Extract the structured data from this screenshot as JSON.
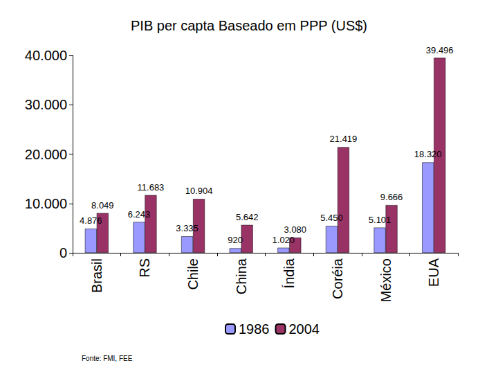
{
  "chart_data": {
    "type": "bar",
    "title": "PIB per capta Baseado em PPP (US$)",
    "annotations": [
      "Fonte: FMI, FEE"
    ],
    "categories": [
      "Brasil",
      "RS",
      "Chile",
      "China",
      "Índia",
      "Coréia",
      "México",
      "EUA"
    ],
    "series": [
      {
        "name": "1986",
        "color": "#9999ff",
        "values": [
          4876,
          6243,
          3335,
          920,
          1020,
          5450,
          5101,
          18320
        ],
        "value_labels": [
          "4.876",
          "6.243",
          "3.335",
          "920",
          "1.020",
          "5.450",
          "5.101",
          "18.320"
        ]
      },
      {
        "name": "2004",
        "color": "#993366",
        "values": [
          8049,
          11683,
          10904,
          5642,
          3080,
          21419,
          9666,
          39496
        ],
        "value_labels": [
          "8.049",
          "11.683",
          "10.904",
          "5.642",
          "3.080",
          "21.419",
          "9.666",
          "39.496"
        ]
      }
    ],
    "ylim": [
      0,
      40000
    ],
    "yticks": [
      0,
      {
        "value": 10000,
        "label": "10.000"
      },
      {
        "value": 20000,
        "label": "20.000"
      },
      {
        "value": 30000,
        "label": "30.000"
      },
      {
        "value": 40000,
        "label": "40.000"
      }
    ],
    "grid": false,
    "legend": "bottom",
    "data_labels": true
  }
}
